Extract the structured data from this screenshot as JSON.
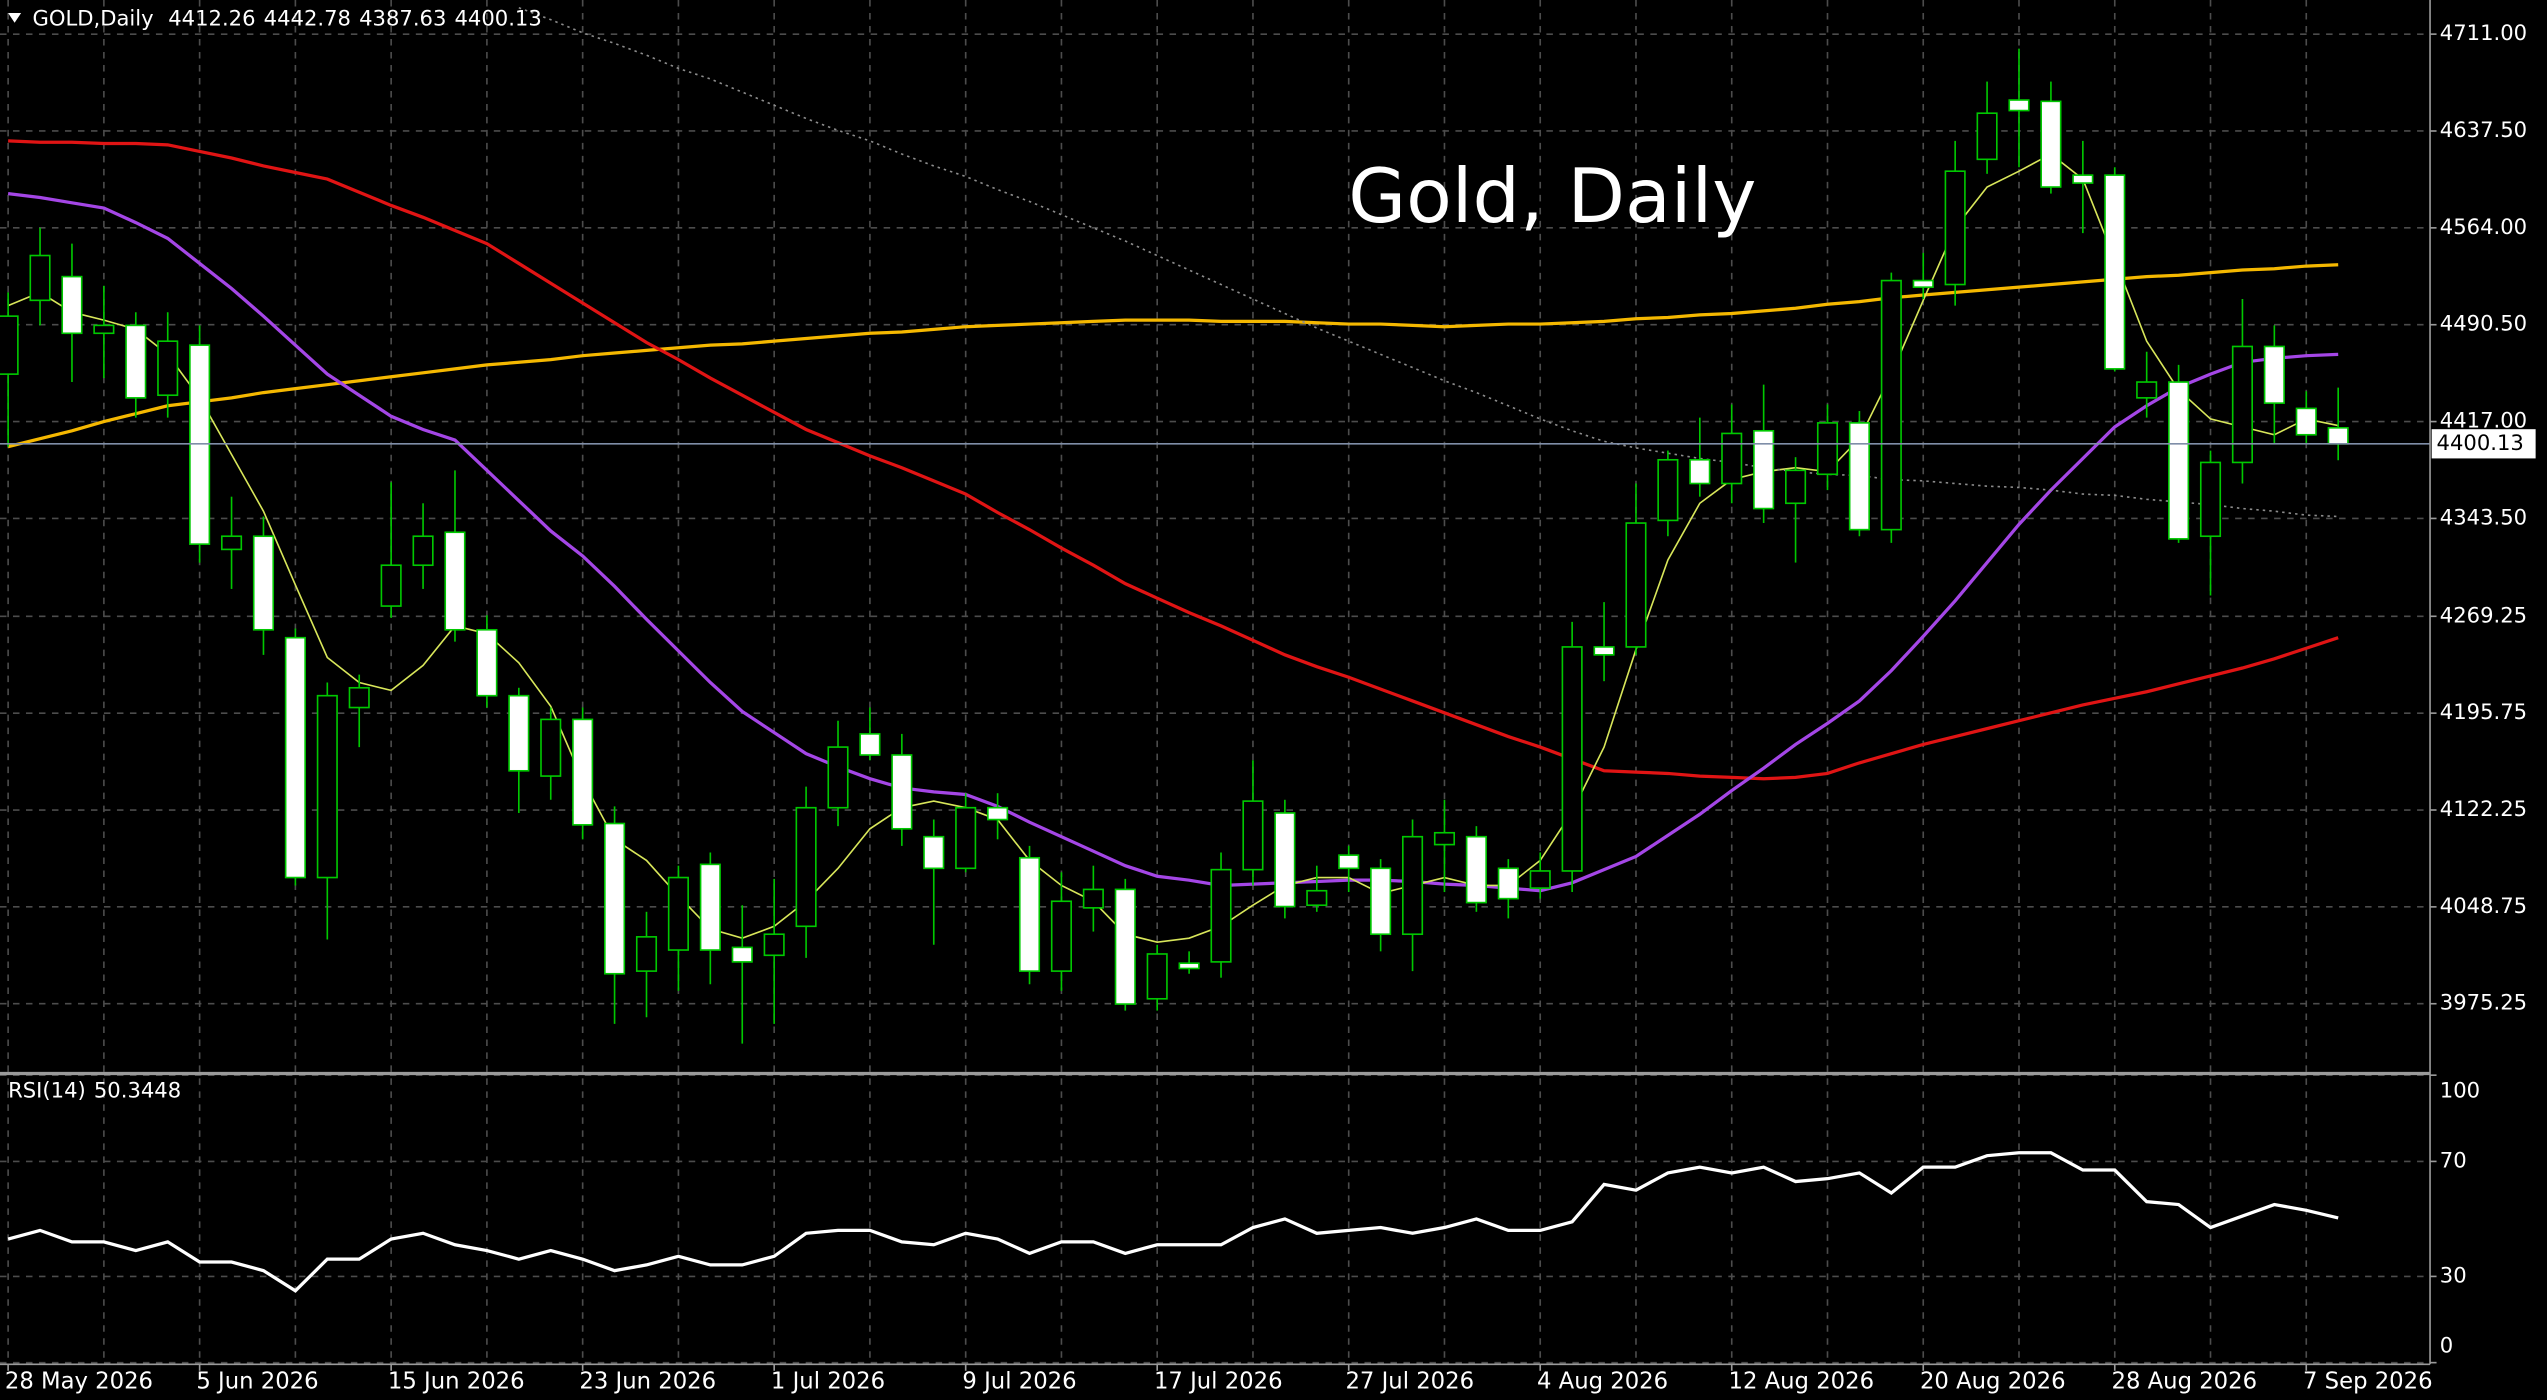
{
  "chart_data": {
    "type": "candlestick",
    "title": "GOLD,Daily",
    "watermark": "Gold, Daily",
    "categories": [
      "28 May 2026",
      null,
      null,
      null,
      null,
      null,
      "5 Jun 2026",
      null,
      null,
      null,
      null,
      null,
      "15 Jun 2026",
      null,
      null,
      null,
      null,
      null,
      "23 Jun 2026",
      null,
      null,
      null,
      null,
      null,
      "1 Jul 2026",
      null,
      null,
      null,
      null,
      null,
      "9 Jul 2026",
      null,
      null,
      null,
      null,
      null,
      "17 Jul 2026",
      null,
      null,
      null,
      null,
      null,
      "27 Jul 2026",
      null,
      null,
      null,
      null,
      null,
      "4 Aug 2026",
      null,
      null,
      null,
      null,
      null,
      "12 Aug 2026",
      null,
      null,
      null,
      null,
      null,
      "20 Aug 2026",
      null,
      null,
      null,
      null,
      null,
      "28 Aug 2026",
      null,
      null,
      null,
      null,
      null,
      "7 Sep 2026",
      null
    ],
    "open": [
      4453,
      4509,
      4527,
      4484,
      4490,
      4437,
      4475,
      4320,
      4330,
      4253,
      4071,
      4200,
      4277,
      4308,
      4333,
      4259,
      4209,
      4148,
      4191,
      4112,
      4000,
      4016,
      4081,
      4018,
      4012,
      4034,
      4124,
      4180,
      4164,
      4102,
      4078,
      4124,
      4086,
      4000,
      4048,
      4062,
      3979,
      4006,
      4007,
      4077,
      4120,
      4050,
      4088,
      4078,
      4028,
      4096,
      4102,
      4078,
      4063,
      4076,
      4246,
      4246,
      4342,
      4388,
      4370,
      4410,
      4355,
      4377,
      4416,
      4335,
      4524,
      4521,
      4616,
      4661,
      4660,
      4604,
      4604,
      4435,
      4447,
      4330,
      4386,
      4474,
      4427,
      4412.26
    ],
    "high": [
      4515,
      4564,
      4552,
      4520,
      4500,
      4500,
      4490,
      4360,
      4345,
      4260,
      4219,
      4225,
      4371,
      4355,
      4380,
      4270,
      4215,
      4200,
      4200,
      4125,
      4045,
      4080,
      4090,
      4050,
      4070,
      4140,
      4190,
      4200,
      4180,
      4115,
      4135,
      4135,
      4095,
      4075,
      4080,
      4070,
      4020,
      4015,
      4090,
      4160,
      4130,
      4080,
      4095,
      4085,
      4115,
      4130,
      4110,
      4085,
      4090,
      4265,
      4280,
      4370,
      4395,
      4420,
      4430,
      4445,
      4390,
      4430,
      4425,
      4530,
      4545,
      4630,
      4675,
      4700,
      4675,
      4630,
      4610,
      4470,
      4460,
      4395,
      4510,
      4490,
      4440,
      4442.78
    ],
    "low": [
      4398,
      4490,
      4447,
      4450,
      4420,
      4420,
      4310,
      4290,
      4240,
      4065,
      4024,
      4170,
      4268,
      4290,
      4250,
      4200,
      4120,
      4130,
      4100,
      3960,
      3965,
      3985,
      3990,
      3945,
      3960,
      4010,
      4110,
      4160,
      4095,
      4020,
      4075,
      4100,
      3990,
      3985,
      4030,
      3970,
      3970,
      3998,
      3995,
      4065,
      4040,
      4045,
      4060,
      4015,
      4000,
      4060,
      4045,
      4040,
      4055,
      4060,
      4220,
      4240,
      4330,
      4360,
      4355,
      4340,
      4310,
      4365,
      4330,
      4325,
      4510,
      4505,
      4605,
      4610,
      4590,
      4560,
      4455,
      4420,
      4325,
      4285,
      4370,
      4400,
      4400,
      4387.63
    ],
    "close": [
      4497,
      4543,
      4484,
      4490,
      4435,
      4478,
      4324,
      4330,
      4259,
      4071,
      4209,
      4215,
      4308,
      4330,
      4259,
      4209,
      4152,
      4191,
      4111,
      3998,
      4026,
      4071,
      4016,
      4007,
      4028,
      4124,
      4170,
      4164,
      4108,
      4078,
      4124,
      4115,
      4000,
      4053,
      4062,
      3975,
      4013,
      4002,
      4077,
      4129,
      4049,
      4061,
      4078,
      4028,
      4102,
      4105,
      4052,
      4055,
      4076,
      4246,
      4240,
      4340,
      4388,
      4370,
      4408,
      4351,
      4380,
      4416,
      4335,
      4524,
      4519,
      4607,
      4651,
      4653,
      4595,
      4598,
      4457,
      4447,
      4328,
      4386,
      4474,
      4431,
      4407,
      4400.13
    ],
    "up_color": "#000000",
    "down_color": "#ffffff",
    "wick_color": "#00c800",
    "ylim": [
      3923.5,
      4736.9
    ],
    "yticks": [
      {
        "value": 4711,
        "label": "4711.00"
      },
      {
        "value": 4637.5,
        "label": "4637.50"
      },
      {
        "value": 4564,
        "label": "4564.00"
      },
      {
        "value": 4490.5,
        "label": "4490.50"
      },
      {
        "value": 4417,
        "label": "4417.00"
      },
      {
        "value": 4343.5,
        "label": "4343.50"
      },
      {
        "value": 4269.25,
        "label": "4269.25"
      },
      {
        "value": 4195.75,
        "label": "4195.75"
      },
      {
        "value": 4122.25,
        "label": "4122.25"
      },
      {
        "value": 4048.75,
        "label": "4048.75"
      },
      {
        "value": 3975.25,
        "label": "3975.25"
      }
    ],
    "grid": true,
    "overlays": [
      {
        "color": "#f5b800",
        "width": 2,
        "style": "solid",
        "values": [
          4398,
          4404,
          4410,
          4417,
          4423,
          4429,
          4432,
          4435,
          4439,
          4442,
          4445,
          4448,
          4451,
          4454,
          4457,
          4460,
          4462,
          4464,
          4467,
          4469,
          4471,
          4473,
          4475,
          4476,
          4478,
          4480,
          4482,
          4484,
          4485,
          4487,
          4489,
          4490,
          4491,
          4492,
          4493,
          4494,
          4494,
          4494,
          4493,
          4493,
          4493,
          4492,
          4491,
          4491,
          4490,
          4489,
          4490,
          4491,
          4491,
          4492,
          4493,
          4495,
          4496,
          4498,
          4499,
          4501,
          4503,
          4506,
          4508,
          4511,
          4513,
          4515,
          4517,
          4519,
          4521,
          4523,
          4525,
          4527,
          4528,
          4530,
          4532,
          4533,
          4535,
          4536
        ]
      },
      {
        "color": "#e01414",
        "width": 2,
        "style": "solid",
        "values": [
          4630,
          4629,
          4629,
          4628,
          4628,
          4627,
          4622,
          4617,
          4611,
          4606,
          4601,
          4591,
          4581,
          4572,
          4562,
          4552,
          4537,
          4522,
          4507,
          4492,
          4477,
          4464,
          4450,
          4437,
          4424,
          4411,
          4401,
          4391,
          4382,
          4372,
          4362,
          4348,
          4335,
          4321,
          4308,
          4294,
          4283,
          4272,
          4262,
          4251,
          4240,
          4231,
          4223,
          4214,
          4205,
          4196,
          4187,
          4178,
          4170,
          4161,
          4152,
          4151,
          4150,
          4148,
          4147,
          4146,
          4147,
          4150,
          4158,
          4165,
          4172,
          4178,
          4184,
          4190,
          4196,
          4202,
          4207,
          4212,
          4218,
          4224,
          4230,
          4237,
          4245,
          4253
        ]
      },
      {
        "color": "#a446e6",
        "width": 2,
        "style": "solid",
        "values": [
          4590,
          4587,
          4583,
          4579,
          4568,
          4556,
          4537,
          4518,
          4497,
          4475,
          4453,
          4437,
          4421,
          4411,
          4403,
          4380,
          4357,
          4334,
          4315,
          4292,
          4267,
          4243,
          4219,
          4197,
          4181,
          4165,
          4155,
          4146,
          4139,
          4136,
          4134,
          4125,
          4113,
          4102,
          4091,
          4080,
          4072,
          4069,
          4065,
          4066,
          4067,
          4068,
          4069,
          4069,
          4068,
          4066,
          4065,
          4063,
          4061,
          4067,
          4077,
          4087,
          4103,
          4119,
          4137,
          4154,
          4172,
          4188,
          4205,
          4228,
          4254,
          4281,
          4310,
          4339,
          4365,
          4389,
          4413,
          4429,
          4443,
          4453,
          4462,
          4465,
          4467,
          4468
        ]
      },
      {
        "color": "#d8e65a",
        "width": 1,
        "style": "solid",
        "values": [
          4505,
          4515,
          4500,
          4494,
          4487,
          4468,
          4435,
          4392,
          4349,
          4293,
          4238,
          4219,
          4213,
          4232,
          4262,
          4256,
          4234,
          4201,
          4145,
          4100,
          4084,
          4057,
          4032,
          4025,
          4034,
          4053,
          4078,
          4108,
          4124,
          4129,
          4124,
          4115,
          4084,
          4065,
          4053,
          4028,
          4022,
          4025,
          4034,
          4050,
          4065,
          4071,
          4071,
          4059,
          4065,
          4071,
          4065,
          4065,
          4084,
          4121,
          4170,
          4244,
          4312,
          4355,
          4373,
          4379,
          4382,
          4379,
          4404,
          4453,
          4509,
          4564,
          4595,
          4607,
          4620,
          4601,
          4540,
          4478,
          4441,
          4419,
          4413,
          4407,
          4419,
          4414
        ]
      },
      {
        "color": "#8c8c8c",
        "width": 1,
        "style": "dotted",
        "values": [
          null,
          null,
          null,
          null,
          null,
          null,
          null,
          null,
          null,
          null,
          null,
          null,
          null,
          null,
          null,
          null,
          4731,
          4722,
          4712,
          4704,
          4695,
          4685,
          4677,
          4667,
          4657,
          4647,
          4638,
          4630,
          4620,
          4611,
          4603,
          4593,
          4584,
          4574,
          4564,
          4554,
          4543,
          4532,
          4521,
          4510,
          4499,
          4488,
          4478,
          4468,
          4458,
          4448,
          4439,
          4429,
          4419,
          4410,
          4402,
          4397,
          4393,
          4389,
          4386,
          4382,
          4379,
          4377,
          4376,
          4373,
          4372,
          4370,
          4368,
          4367,
          4365,
          4362,
          4361,
          4358,
          4356,
          4354,
          4351,
          4349,
          4346,
          4345
        ]
      }
    ],
    "indicator": {
      "title": "RSI(14)",
      "color": "#ffffff",
      "values": [
        43,
        46,
        42,
        42,
        39,
        42,
        35,
        35,
        32,
        25,
        36,
        36,
        43,
        45,
        41,
        39,
        36,
        39,
        36,
        32,
        34,
        37,
        34,
        34,
        37,
        45,
        46,
        46,
        42,
        41,
        45,
        43,
        38,
        42,
        42,
        38,
        41,
        41,
        41,
        47,
        50,
        45,
        46,
        47,
        45,
        47,
        50,
        46,
        46,
        49,
        62,
        60,
        66,
        68,
        66,
        68,
        63,
        64,
        66,
        59,
        68,
        68,
        72,
        73,
        73,
        67,
        67,
        56,
        55,
        47,
        51,
        55,
        53,
        50.3448
      ],
      "ylim": [
        0,
        100
      ],
      "yticks": [
        100,
        70,
        30,
        0
      ]
    }
  }
}
